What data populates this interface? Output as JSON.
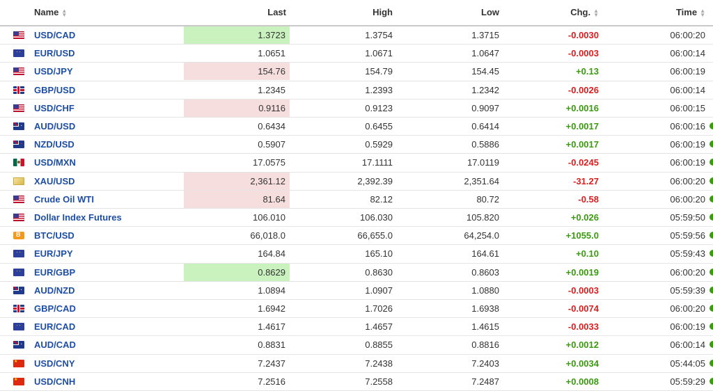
{
  "header": {
    "name": "Name",
    "last": "Last",
    "high": "High",
    "low": "Low",
    "chg": "Chg.",
    "time": "Time"
  },
  "colors": {
    "up": "#3b9a10",
    "down": "#d91f1f",
    "link": "#1d4ea3",
    "highlight_up": "#c9f2be",
    "highlight_down": "#f7dede"
  },
  "rows": [
    {
      "flag": "us",
      "name": "USD/CAD",
      "last": "1.3723",
      "high": "1.3754",
      "low": "1.3715",
      "chg": "-0.0030",
      "dir": "down",
      "time": "06:00:20",
      "hl": "up",
      "dot": false
    },
    {
      "flag": "eu",
      "name": "EUR/USD",
      "last": "1.0651",
      "high": "1.0671",
      "low": "1.0647",
      "chg": "-0.0003",
      "dir": "down",
      "time": "06:00:14",
      "hl": "",
      "dot": false
    },
    {
      "flag": "us",
      "name": "USD/JPY",
      "last": "154.76",
      "high": "154.79",
      "low": "154.45",
      "chg": "+0.13",
      "dir": "up",
      "time": "06:00:19",
      "hl": "down",
      "dot": false
    },
    {
      "flag": "gb",
      "name": "GBP/USD",
      "last": "1.2345",
      "high": "1.2393",
      "low": "1.2342",
      "chg": "-0.0026",
      "dir": "down",
      "time": "06:00:14",
      "hl": "",
      "dot": false
    },
    {
      "flag": "us",
      "name": "USD/CHF",
      "last": "0.9116",
      "high": "0.9123",
      "low": "0.9097",
      "chg": "+0.0016",
      "dir": "up",
      "time": "06:00:15",
      "hl": "down",
      "dot": false
    },
    {
      "flag": "au",
      "name": "AUD/USD",
      "last": "0.6434",
      "high": "0.6455",
      "low": "0.6414",
      "chg": "+0.0017",
      "dir": "up",
      "time": "06:00:16",
      "hl": "",
      "dot": true
    },
    {
      "flag": "nz",
      "name": "NZD/USD",
      "last": "0.5907",
      "high": "0.5929",
      "low": "0.5886",
      "chg": "+0.0017",
      "dir": "up",
      "time": "06:00:19",
      "hl": "",
      "dot": true
    },
    {
      "flag": "mx",
      "name": "USD/MXN",
      "last": "17.0575",
      "high": "17.1111",
      "low": "17.0119",
      "chg": "-0.0245",
      "dir": "down",
      "time": "06:00:19",
      "hl": "",
      "dot": true
    },
    {
      "flag": "xau",
      "name": "XAU/USD",
      "last": "2,361.12",
      "high": "2,392.39",
      "low": "2,351.64",
      "chg": "-31.27",
      "dir": "down",
      "time": "06:00:20",
      "hl": "down",
      "dot": true
    },
    {
      "flag": "us",
      "name": "Crude Oil WTI",
      "last": "81.64",
      "high": "82.12",
      "low": "80.72",
      "chg": "-0.58",
      "dir": "down",
      "time": "06:00:20",
      "hl": "down",
      "dot": true
    },
    {
      "flag": "us",
      "name": "Dollar Index Futures",
      "last": "106.010",
      "high": "106.030",
      "low": "105.820",
      "chg": "+0.026",
      "dir": "up",
      "time": "05:59:50",
      "hl": "",
      "dot": true
    },
    {
      "flag": "btc",
      "name": "BTC/USD",
      "last": "66,018.0",
      "high": "66,655.0",
      "low": "64,254.0",
      "chg": "+1055.0",
      "dir": "up",
      "time": "05:59:56",
      "hl": "",
      "dot": true
    },
    {
      "flag": "eu",
      "name": "EUR/JPY",
      "last": "164.84",
      "high": "165.10",
      "low": "164.61",
      "chg": "+0.10",
      "dir": "up",
      "time": "05:59:43",
      "hl": "",
      "dot": true
    },
    {
      "flag": "eu",
      "name": "EUR/GBP",
      "last": "0.8629",
      "high": "0.8630",
      "low": "0.8603",
      "chg": "+0.0019",
      "dir": "up",
      "time": "06:00:20",
      "hl": "up",
      "dot": true
    },
    {
      "flag": "au",
      "name": "AUD/NZD",
      "last": "1.0894",
      "high": "1.0907",
      "low": "1.0880",
      "chg": "-0.0003",
      "dir": "down",
      "time": "05:59:39",
      "hl": "",
      "dot": true
    },
    {
      "flag": "gb",
      "name": "GBP/CAD",
      "last": "1.6942",
      "high": "1.7026",
      "low": "1.6938",
      "chg": "-0.0074",
      "dir": "down",
      "time": "06:00:20",
      "hl": "",
      "dot": true
    },
    {
      "flag": "eu",
      "name": "EUR/CAD",
      "last": "1.4617",
      "high": "1.4657",
      "low": "1.4615",
      "chg": "-0.0033",
      "dir": "down",
      "time": "06:00:19",
      "hl": "",
      "dot": true
    },
    {
      "flag": "au",
      "name": "AUD/CAD",
      "last": "0.8831",
      "high": "0.8855",
      "low": "0.8816",
      "chg": "+0.0012",
      "dir": "up",
      "time": "06:00:14",
      "hl": "",
      "dot": true
    },
    {
      "flag": "cn",
      "name": "USD/CNY",
      "last": "7.2437",
      "high": "7.2438",
      "low": "7.2403",
      "chg": "+0.0034",
      "dir": "up",
      "time": "05:44:05",
      "hl": "",
      "dot": true
    },
    {
      "flag": "cn",
      "name": "USD/CNH",
      "last": "7.2516",
      "high": "7.2558",
      "low": "7.2487",
      "chg": "+0.0008",
      "dir": "up",
      "time": "05:59:29",
      "hl": "",
      "dot": true
    }
  ]
}
